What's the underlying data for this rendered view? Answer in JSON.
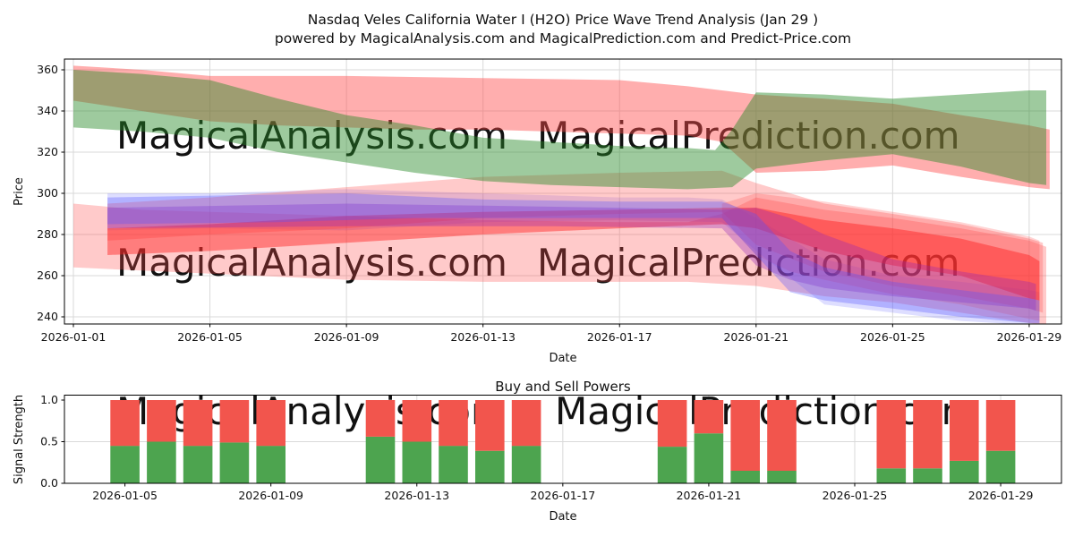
{
  "figure": {
    "title_line1": "Nasdaq Veles California Water I (H2O) Price Wave Trend Analysis (Jan 29 )",
    "title_line2": "powered by MagicalAnalysis.com and MagicalPrediction.com and Predict-Price.com",
    "watermarks": [
      "MagicalAnalysis.com",
      "MagicalPrediction.com"
    ],
    "watermark_color": "rgba(140,140,140,0.30)"
  },
  "chart_data": [
    {
      "type": "area",
      "title": "",
      "xlabel": "Date",
      "ylabel": "Price",
      "grid": true,
      "ylim": [
        236.5,
        365.2
      ],
      "x_ticks": [
        {
          "day": 1,
          "label": "2026-01-01"
        },
        {
          "day": 5,
          "label": "2026-01-05"
        },
        {
          "day": 9,
          "label": "2026-01-09"
        },
        {
          "day": 13,
          "label": "2026-01-13"
        },
        {
          "day": 17,
          "label": "2026-01-17"
        },
        {
          "day": 21,
          "label": "2026-01-21"
        },
        {
          "day": 25,
          "label": "2026-01-25"
        },
        {
          "day": 29,
          "label": "2026-01-29"
        }
      ],
      "y_ticks": [
        240,
        260,
        280,
        300,
        320,
        340,
        360
      ],
      "bands": [
        {
          "name": "red-wide-lower",
          "color": "rgba(255,80,80,0.30)",
          "upper": [
            [
              1,
              295
            ],
            [
              3,
              292
            ],
            [
              5,
              291
            ],
            [
              9,
              289
            ],
            [
              13,
              287
            ],
            [
              17,
              286
            ],
            [
              19,
              286
            ],
            [
              20,
              290
            ],
            [
              21,
              298
            ],
            [
              23,
              292
            ],
            [
              25,
              288
            ],
            [
              27,
              283
            ],
            [
              29,
              277
            ],
            [
              29.5,
              274
            ]
          ],
          "lower": [
            [
              1,
              264
            ],
            [
              5,
              261
            ],
            [
              9,
              258
            ],
            [
              13,
              257
            ],
            [
              17,
              257
            ],
            [
              19,
              257
            ],
            [
              21,
              255
            ],
            [
              23,
              250
            ],
            [
              25,
              247
            ],
            [
              27,
              242
            ],
            [
              29,
              237
            ],
            [
              29.5,
              236
            ]
          ]
        },
        {
          "name": "blue-wide",
          "color": "rgba(90,90,255,0.20)",
          "upper": [
            [
              2,
              300
            ],
            [
              5,
              300
            ],
            [
              9,
              302
            ],
            [
              13,
              300
            ],
            [
              15,
              299
            ],
            [
              17,
              298
            ],
            [
              19,
              298
            ],
            [
              20,
              297
            ],
            [
              21,
              288
            ],
            [
              23,
              268
            ],
            [
              25,
              260
            ],
            [
              27,
              257
            ],
            [
              29,
              253
            ],
            [
              29.3,
              252
            ]
          ],
          "lower": [
            [
              2,
              282
            ],
            [
              5,
              283
            ],
            [
              9,
              282
            ],
            [
              13,
              286
            ],
            [
              17,
              287
            ],
            [
              20,
              286
            ],
            [
              21,
              272
            ],
            [
              23,
              246
            ],
            [
              25,
              242
            ],
            [
              27,
              238
            ],
            [
              29,
              236
            ],
            [
              29.3,
              236
            ]
          ]
        },
        {
          "name": "red-mid-channel",
          "color": "rgba(255,80,80,0.30)",
          "upper": [
            [
              2,
              295
            ],
            [
              5,
              298
            ],
            [
              9,
              303
            ],
            [
              13,
              308
            ],
            [
              17,
              310
            ],
            [
              20,
              311
            ],
            [
              21,
              305
            ],
            [
              23,
              295
            ],
            [
              25,
              290
            ],
            [
              27,
              285
            ],
            [
              29,
              278
            ],
            [
              29.4,
              276
            ]
          ],
          "lower": [
            [
              2,
              277
            ],
            [
              5,
              280
            ],
            [
              9,
              283
            ],
            [
              13,
              288
            ],
            [
              17,
              290
            ],
            [
              20,
              291
            ],
            [
              21,
              275
            ],
            [
              23,
              262
            ],
            [
              25,
              255
            ],
            [
              27,
              250
            ],
            [
              29,
              244
            ],
            [
              29.4,
              242
            ]
          ]
        },
        {
          "name": "red-fan-soft",
          "color": "rgba(255,60,60,0.22)",
          "upper": [
            [
              20,
              295
            ],
            [
              21,
              300
            ],
            [
              22,
              298
            ],
            [
              23,
              296
            ],
            [
              25,
              291
            ],
            [
              27,
              286
            ],
            [
              29,
              279
            ],
            [
              29.3,
              277
            ]
          ],
          "lower": [
            [
              20,
              288
            ],
            [
              21,
              270
            ],
            [
              22,
              262
            ],
            [
              23,
              258
            ],
            [
              25,
              251
            ],
            [
              27,
              246
            ],
            [
              29,
              239
            ],
            [
              29.3,
              238
            ]
          ]
        },
        {
          "name": "red-core",
          "color": "rgba(255,30,30,0.45)",
          "upper": [
            [
              2,
              283
            ],
            [
              5,
              285
            ],
            [
              9,
              289
            ],
            [
              13,
              291
            ],
            [
              17,
              292
            ],
            [
              20,
              293
            ],
            [
              21,
              293
            ],
            [
              23,
              287
            ],
            [
              25,
              283
            ],
            [
              27,
              278
            ],
            [
              29,
              270
            ],
            [
              29.3,
              267
            ]
          ],
          "lower": [
            [
              2,
              270
            ],
            [
              5,
              272
            ],
            [
              9,
              276
            ],
            [
              13,
              280
            ],
            [
              17,
              283
            ],
            [
              20,
              285
            ],
            [
              21,
              283
            ],
            [
              23,
              272
            ],
            [
              25,
              265
            ],
            [
              27,
              260
            ],
            [
              29,
              249
            ],
            [
              29.3,
              248
            ]
          ]
        },
        {
          "name": "purple-core",
          "color": "rgba(145,35,185,0.33)",
          "upper": [
            [
              2,
              293
            ],
            [
              9,
              295
            ],
            [
              13,
              294
            ],
            [
              17,
              293
            ],
            [
              20,
              292
            ],
            [
              21,
              293
            ],
            [
              22,
              288
            ],
            [
              23,
              280
            ],
            [
              25,
              268
            ],
            [
              27,
              262
            ],
            [
              29,
              257
            ],
            [
              29.2,
              256
            ]
          ],
          "lower": [
            [
              2,
              283
            ],
            [
              9,
              284
            ],
            [
              15,
              284
            ],
            [
              20,
              283
            ],
            [
              21,
              265
            ],
            [
              22,
              258
            ],
            [
              23,
              254
            ],
            [
              25,
              250
            ],
            [
              27,
              247
            ],
            [
              29,
              244
            ],
            [
              29.2,
              243
            ]
          ]
        },
        {
          "name": "blue-core",
          "color": "rgba(85,85,255,0.32)",
          "upper": [
            [
              2,
              298
            ],
            [
              9,
              300
            ],
            [
              13,
              297
            ],
            [
              17,
              296
            ],
            [
              20,
              296
            ],
            [
              21,
              290
            ],
            [
              22,
              272
            ],
            [
              23,
              264
            ],
            [
              25,
              257
            ],
            [
              27,
              253
            ],
            [
              29,
              249
            ],
            [
              29.3,
              248
            ]
          ],
          "lower": [
            [
              2,
              285
            ],
            [
              7,
              286
            ],
            [
              11,
              288
            ],
            [
              15,
              288
            ],
            [
              20,
              288
            ],
            [
              21,
              270
            ],
            [
              22,
              252
            ],
            [
              23,
              248
            ],
            [
              25,
              244
            ],
            [
              27,
              240
            ],
            [
              29,
              237
            ],
            [
              29.3,
              237
            ]
          ]
        },
        {
          "name": "red-upper-band",
          "color": "rgba(255,75,75,0.45)",
          "upper": [
            [
              1,
              362
            ],
            [
              3,
              360
            ],
            [
              5,
              357
            ],
            [
              9,
              357
            ],
            [
              13,
              356
            ],
            [
              17,
              355
            ],
            [
              19,
              352
            ],
            [
              20,
              350
            ],
            [
              21,
              348
            ],
            [
              23,
              346
            ],
            [
              25,
              343.5
            ],
            [
              27,
              338
            ],
            [
              29,
              333
            ],
            [
              29.6,
              331
            ]
          ],
          "lower": [
            [
              1,
              345
            ],
            [
              3,
              340
            ],
            [
              5,
              335
            ],
            [
              7,
              333
            ],
            [
              9,
              332
            ],
            [
              11,
              331
            ],
            [
              13,
              331
            ],
            [
              15,
              330
            ],
            [
              17,
              329
            ],
            [
              19,
              328
            ],
            [
              20,
              325
            ],
            [
              21,
              310
            ],
            [
              23,
              311
            ],
            [
              25,
              313.5
            ],
            [
              27,
              308
            ],
            [
              29,
              303
            ],
            [
              29.6,
              302
            ]
          ]
        },
        {
          "name": "green-band",
          "color": "rgba(40,138,40,0.45)",
          "upper": [
            [
              1,
              360
            ],
            [
              3,
              358
            ],
            [
              5,
              355
            ],
            [
              7,
              346
            ],
            [
              9,
              338
            ],
            [
              11,
              333
            ],
            [
              13,
              327
            ],
            [
              15,
              325
            ],
            [
              17,
              323
            ],
            [
              19,
              322
            ],
            [
              19.8,
              321
            ],
            [
              20.3,
              331
            ],
            [
              21,
              349
            ],
            [
              23,
              348
            ],
            [
              25,
              346
            ],
            [
              27,
              348
            ],
            [
              29,
              350
            ],
            [
              29.5,
              350
            ]
          ],
          "lower": [
            [
              1,
              332
            ],
            [
              3,
              330
            ],
            [
              5,
              327
            ],
            [
              7,
              320
            ],
            [
              9,
              315
            ],
            [
              11,
              310
            ],
            [
              13,
              306
            ],
            [
              15,
              304
            ],
            [
              17,
              303
            ],
            [
              19,
              302
            ],
            [
              20.3,
              303
            ],
            [
              21,
              312
            ],
            [
              23,
              316
            ],
            [
              25,
              319
            ],
            [
              27,
              313
            ],
            [
              29,
              305
            ],
            [
              29.5,
              304
            ]
          ]
        }
      ]
    },
    {
      "type": "bar",
      "stacked": true,
      "title": "Buy and Sell Powers",
      "xlabel": "Date",
      "ylabel": "Signal Strength",
      "grid": true,
      "ylim": [
        0,
        1.06
      ],
      "bar_width_days": 0.8,
      "x_ticks": [
        {
          "day": 5,
          "label": "2026-01-05"
        },
        {
          "day": 9,
          "label": "2026-01-09"
        },
        {
          "day": 13,
          "label": "2026-01-13"
        },
        {
          "day": 17,
          "label": "2026-01-17"
        },
        {
          "day": 21,
          "label": "2026-01-21"
        },
        {
          "day": 25,
          "label": "2026-01-25"
        },
        {
          "day": 29,
          "label": "2026-01-29"
        }
      ],
      "y_ticks": [
        {
          "v": 0,
          "label": "0.0"
        },
        {
          "v": 0.5,
          "label": "0.5"
        },
        {
          "v": 1,
          "label": "1.0"
        }
      ],
      "days": [
        5,
        6,
        7,
        8,
        9,
        12,
        13,
        14,
        15,
        16,
        20,
        21,
        22,
        23,
        26,
        27,
        28,
        29
      ],
      "series": [
        {
          "name": "Buy",
          "color": "#4da44f",
          "values": [
            0.45,
            0.5,
            0.45,
            0.49,
            0.45,
            0.56,
            0.5,
            0.45,
            0.39,
            0.45,
            0.44,
            0.6,
            0.15,
            0.15,
            0.18,
            0.18,
            0.27,
            0.39
          ]
        },
        {
          "name": "Sell",
          "color": "#f2554d",
          "values": [
            0.55,
            0.5,
            0.55,
            0.51,
            0.55,
            0.44,
            0.5,
            0.55,
            0.61,
            0.55,
            0.56,
            0.4,
            0.85,
            0.85,
            0.82,
            0.82,
            0.73,
            0.61
          ]
        }
      ]
    }
  ]
}
